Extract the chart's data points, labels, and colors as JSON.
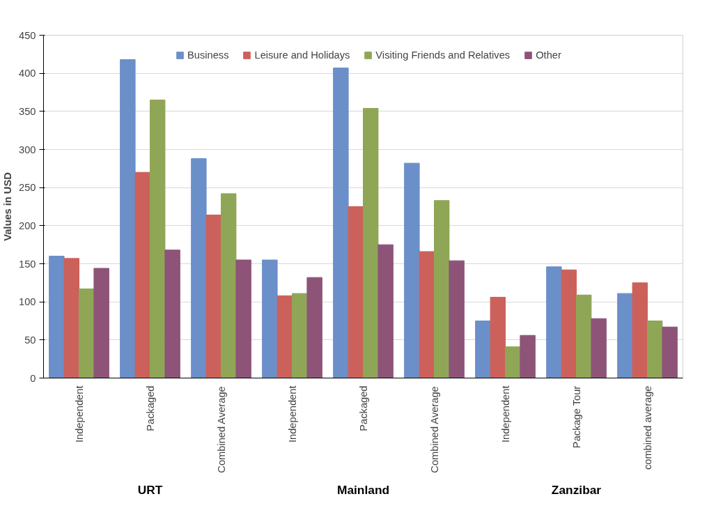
{
  "chart_data": {
    "type": "bar",
    "ylabel": "Values in USD",
    "categories": [
      "Independent",
      "Packaged",
      "Combined Average",
      "Independent",
      "Packaged",
      "Combined Average",
      "Independent",
      "Package Tour",
      "combined average"
    ],
    "series": [
      {
        "name": "Business",
        "color": "#6b8fc9",
        "values": [
          160,
          418,
          288,
          155,
          407,
          282,
          75,
          146,
          111
        ]
      },
      {
        "name": "Leisure and Holidays",
        "color": "#cc615b",
        "values": [
          157,
          270,
          214,
          108,
          225,
          166,
          106,
          142,
          125
        ]
      },
      {
        "name": "Visiting Friends and Relatives",
        "color": "#8fa656",
        "values": [
          117,
          365,
          242,
          111,
          354,
          233,
          41,
          109,
          75
        ]
      },
      {
        "name": "Other",
        "color": "#8e5478",
        "values": [
          144,
          168,
          155,
          132,
          175,
          154,
          56,
          78,
          67
        ]
      }
    ],
    "ylim": [
      0,
      450
    ],
    "yticks": [
      0,
      50,
      100,
      150,
      200,
      250,
      300,
      350,
      400,
      450
    ],
    "grid": "y",
    "legend": "top",
    "annotations": [
      "URT",
      "Mainland",
      "Zanzibar"
    ]
  }
}
